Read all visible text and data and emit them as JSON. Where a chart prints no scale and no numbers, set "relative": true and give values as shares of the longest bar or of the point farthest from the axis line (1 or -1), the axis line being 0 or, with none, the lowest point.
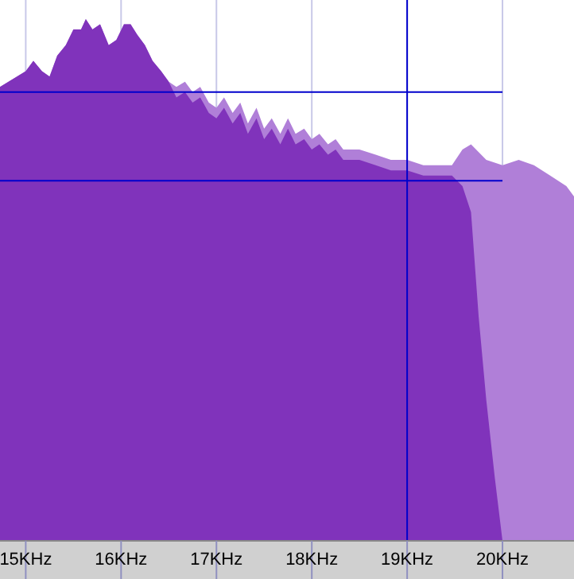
{
  "chart_data": {
    "type": "area",
    "relative": true,
    "xlim": [
      14.73,
      20.75
    ],
    "xticks": [
      {
        "value": 15,
        "label": "15KHz"
      },
      {
        "value": 16,
        "label": "16KHz"
      },
      {
        "value": 17,
        "label": "17KHz"
      },
      {
        "value": 18,
        "label": "18KHz"
      },
      {
        "value": 19,
        "label": "19KHz"
      },
      {
        "value": 20,
        "label": "20KHz"
      }
    ],
    "grid": "x",
    "tick_labels": "x",
    "series": [
      {
        "color": "#b07fd8",
        "x": [
          14.73,
          15,
          15.08,
          15.17,
          15.25,
          15.33,
          15.42,
          15.5,
          15.58,
          15.63,
          15.7,
          15.78,
          15.87,
          15.95,
          16.03,
          16.1,
          16.17,
          16.25,
          16.33,
          16.42,
          16.5,
          16.58,
          16.67,
          16.75,
          16.83,
          16.92,
          17,
          17.08,
          17.17,
          17.25,
          17.33,
          17.42,
          17.5,
          17.58,
          17.67,
          17.75,
          17.83,
          17.92,
          18,
          18.08,
          18.17,
          18.25,
          18.33,
          18.5,
          18.67,
          18.83,
          19,
          19.17,
          19.33,
          19.47,
          19.58,
          19.67,
          19.83,
          20,
          20.17,
          20.33,
          20.5,
          20.67,
          20.75
        ],
        "values": [
          0.87,
          0.9,
          0.92,
          0.9,
          0.89,
          0.93,
          0.95,
          0.98,
          0.98,
          1,
          0.98,
          0.99,
          0.95,
          0.96,
          0.99,
          0.99,
          0.97,
          0.95,
          0.92,
          0.9,
          0.88,
          0.87,
          0.88,
          0.86,
          0.87,
          0.84,
          0.83,
          0.85,
          0.82,
          0.84,
          0.8,
          0.83,
          0.79,
          0.81,
          0.78,
          0.81,
          0.78,
          0.79,
          0.77,
          0.78,
          0.76,
          0.77,
          0.75,
          0.75,
          0.74,
          0.73,
          0.73,
          0.72,
          0.72,
          0.72,
          0.75,
          0.76,
          0.73,
          0.72,
          0.73,
          0.72,
          0.7,
          0.68,
          0.66
        ]
      },
      {
        "color": "#8033bb",
        "x": [
          14.73,
          15,
          15.08,
          15.17,
          15.25,
          15.33,
          15.42,
          15.5,
          15.58,
          15.63,
          15.7,
          15.78,
          15.87,
          15.95,
          16.03,
          16.1,
          16.17,
          16.25,
          16.33,
          16.42,
          16.5,
          16.58,
          16.67,
          16.75,
          16.83,
          16.92,
          17,
          17.08,
          17.17,
          17.25,
          17.33,
          17.42,
          17.5,
          17.58,
          17.67,
          17.75,
          17.83,
          17.92,
          18,
          18.08,
          18.17,
          18.25,
          18.33,
          18.5,
          18.67,
          18.83,
          19,
          19.17,
          19.33,
          19.47,
          19.58,
          19.67,
          19.75,
          19.83,
          19.92,
          20
        ],
        "values": [
          0.87,
          0.9,
          0.92,
          0.9,
          0.89,
          0.93,
          0.95,
          0.98,
          0.98,
          1,
          0.98,
          0.99,
          0.95,
          0.96,
          0.99,
          0.99,
          0.97,
          0.95,
          0.92,
          0.9,
          0.88,
          0.85,
          0.86,
          0.84,
          0.85,
          0.82,
          0.81,
          0.83,
          0.8,
          0.82,
          0.78,
          0.81,
          0.77,
          0.79,
          0.76,
          0.79,
          0.76,
          0.77,
          0.75,
          0.76,
          0.74,
          0.75,
          0.73,
          0.73,
          0.72,
          0.71,
          0.71,
          0.7,
          0.7,
          0.7,
          0.68,
          0.63,
          0.43,
          0.27,
          0.12,
          0
        ]
      }
    ],
    "ref_lines": [
      {
        "axis": "x",
        "value": 19,
        "color": "#0000cc"
      },
      {
        "axis": "y",
        "value": 0.86,
        "color": "#0000cc"
      },
      {
        "axis": "y",
        "value": 0.69,
        "color": "#0000cc"
      }
    ]
  }
}
